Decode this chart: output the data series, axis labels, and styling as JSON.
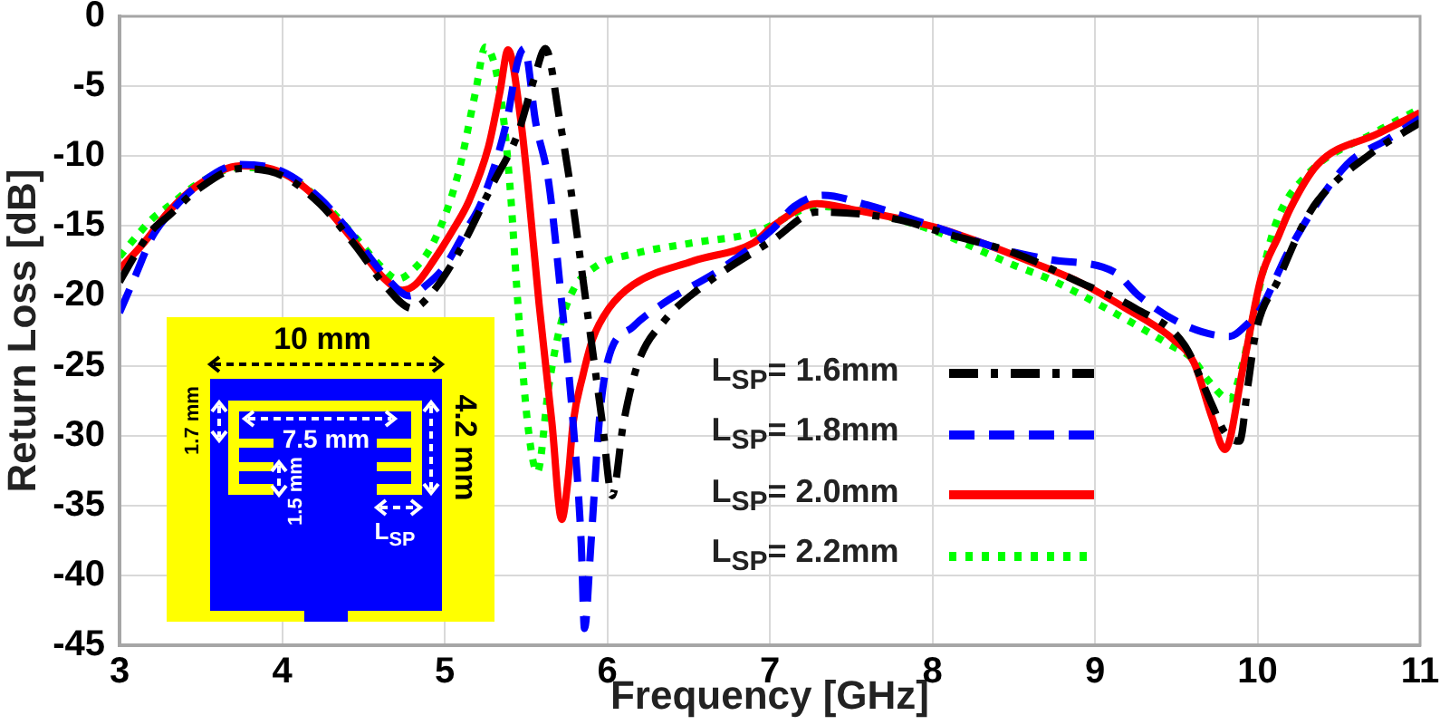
{
  "chart_data": {
    "type": "line",
    "xlabel": "Frequency [GHz]",
    "ylabel": "Return Loss [dB]",
    "xlim": [
      3,
      11
    ],
    "xticks": [
      3,
      4,
      5,
      6,
      7,
      8,
      9,
      10,
      11
    ],
    "ylim": [
      -45,
      0
    ],
    "yticks": [
      -45,
      -40,
      -35,
      -30,
      -25,
      -20,
      -15,
      -10,
      -5,
      0
    ],
    "grid": true,
    "legend": "bottom",
    "annotations": [
      "10 mm",
      "7.5 mm",
      "1.7 mm",
      "1.5 mm",
      "4.2 mm",
      "L$_{SP}$"
    ],
    "series": [
      {
        "name": "L$_{SP}$= 1.6mm",
        "color": "#000000",
        "line_style": "dashdot",
        "x": [
          3,
          3.1,
          3.2,
          3.3,
          3.48,
          3.74,
          4,
          4.23,
          4.45,
          4.65,
          4.8,
          4.92,
          5.08,
          5.3,
          5.45,
          5.55,
          5.62,
          5.71,
          5.77,
          5.87,
          5.97,
          6.03,
          6.1,
          6.19,
          6.35,
          6.6,
          7.02,
          7.29,
          7.77,
          8.1,
          8.52,
          8.9,
          9.25,
          9.55,
          9.72,
          9.8,
          9.89,
          9.94,
          9.99,
          10.13,
          10.28,
          10.37,
          10.7,
          11
        ],
        "values": [
          -19,
          -17,
          -15.3,
          -14.3,
          -12.4,
          -10.9,
          -11.4,
          -13.4,
          -16.4,
          -19.5,
          -20.9,
          -19.8,
          -17,
          -11.9,
          -8.4,
          -4.5,
          -2.3,
          -7.6,
          -11.9,
          -20.5,
          -29.1,
          -34.3,
          -29.1,
          -24.8,
          -21.8,
          -19.2,
          -16,
          -14,
          -14.5,
          -15.6,
          -17,
          -19,
          -20.9,
          -23.5,
          -27.8,
          -29.8,
          -30.4,
          -26.5,
          -22.6,
          -18.8,
          -14.9,
          -13.2,
          -9.8,
          -7.6
        ]
      },
      {
        "name": "L$_{SP}$= 1.8mm",
        "color": "#0000ff",
        "line_style": "dashed",
        "x": [
          3,
          3.1,
          3.2,
          3.3,
          3.48,
          3.74,
          4,
          4.23,
          4.45,
          4.65,
          4.78,
          4.88,
          5,
          5.12,
          5.23,
          5.38,
          5.45,
          5.49,
          5.56,
          5.64,
          5.72,
          5.79,
          5.84,
          5.86,
          5.9,
          5.95,
          6,
          6.16,
          6.35,
          6.71,
          7.02,
          7.15,
          7.33,
          7.6,
          8,
          8.41,
          8.72,
          9.12,
          9.27,
          9.57,
          9.83,
          9.92,
          10.02,
          10.2,
          10.55,
          10.8,
          11
        ],
        "values": [
          -21.2,
          -18.5,
          -15.8,
          -14.2,
          -12.1,
          -10.6,
          -11.1,
          -13,
          -15.9,
          -18.8,
          -20,
          -19.3,
          -17.9,
          -15.5,
          -13.2,
          -7.6,
          -3.2,
          -2.3,
          -7.6,
          -11.9,
          -20.5,
          -29.1,
          -37.7,
          -43.8,
          -37.7,
          -29.1,
          -24.8,
          -22.2,
          -20.5,
          -18,
          -15.2,
          -13.6,
          -12.8,
          -13.5,
          -15,
          -16.6,
          -17.4,
          -18.3,
          -20,
          -22.2,
          -22.9,
          -22.2,
          -20.9,
          -16.6,
          -10.6,
          -8.8,
          -7.3
        ]
      },
      {
        "name": "L$_{SP}$= 2.0mm",
        "color": "#ff0000",
        "line_style": "solid",
        "x": [
          3,
          3.15,
          3.3,
          3.48,
          3.74,
          4,
          4.23,
          4.45,
          4.63,
          4.74,
          4.82,
          4.93,
          5.05,
          5.15,
          5.27,
          5.34,
          5.39,
          5.47,
          5.51,
          5.58,
          5.66,
          5.72,
          5.76,
          5.79,
          5.85,
          5.91,
          6.01,
          6.16,
          6.53,
          6.9,
          7.02,
          7.29,
          7.5,
          8.02,
          8.3,
          8.59,
          8.9,
          9.19,
          9.48,
          9.61,
          9.72,
          9.8,
          9.91,
          10.02,
          10.13,
          10.2,
          10.37,
          10.74,
          11
        ],
        "values": [
          -18.1,
          -16.2,
          -14,
          -12.1,
          -10.7,
          -11.2,
          -13.2,
          -16.2,
          -18.8,
          -19.6,
          -19.2,
          -17.5,
          -15.3,
          -13.2,
          -9.3,
          -5.4,
          -2.4,
          -7.6,
          -11.9,
          -20.5,
          -29.1,
          -36,
          -33,
          -29.1,
          -25.7,
          -23.1,
          -20.9,
          -19.2,
          -17.5,
          -16.2,
          -15,
          -13.4,
          -13.8,
          -15.1,
          -16.2,
          -17.5,
          -19,
          -20.9,
          -23.1,
          -24.8,
          -28.7,
          -31,
          -25.2,
          -18.8,
          -15.7,
          -13.8,
          -10.6,
          -8.4,
          -6.9
        ]
      },
      {
        "name": "L$_{SP}$= 2.2mm",
        "color": "#00ff00",
        "line_style": "dotted",
        "x": [
          3,
          3.1,
          3.2,
          3.3,
          3.48,
          3.74,
          4,
          4.23,
          4.45,
          4.6,
          4.71,
          4.8,
          4.93,
          5.08,
          5.19,
          5.25,
          5.34,
          5.4,
          5.45,
          5.51,
          5.57,
          5.64,
          5.71,
          5.79,
          5.93,
          6.16,
          6.53,
          6.9,
          7.3,
          7.6,
          8,
          8.5,
          8.72,
          9.07,
          9.46,
          9.6,
          9.7,
          9.83,
          9.91,
          9.96,
          10,
          10.11,
          10.3,
          10.74,
          11
        ],
        "values": [
          -17.2,
          -15.8,
          -14.5,
          -13.6,
          -12,
          -10.8,
          -11.2,
          -13.1,
          -15.8,
          -17.8,
          -18.8,
          -18.2,
          -16.2,
          -11.4,
          -5.4,
          -2.2,
          -5.4,
          -11.9,
          -20.5,
          -29.1,
          -32.6,
          -26.5,
          -22.2,
          -19.6,
          -17.9,
          -17,
          -16.2,
          -15.5,
          -13.6,
          -14,
          -15.3,
          -17.8,
          -18.8,
          -20.9,
          -23.5,
          -24.5,
          -26.1,
          -27.4,
          -24.8,
          -22.2,
          -20,
          -14.9,
          -11.4,
          -8.2,
          -6.6
        ]
      }
    ]
  }
}
